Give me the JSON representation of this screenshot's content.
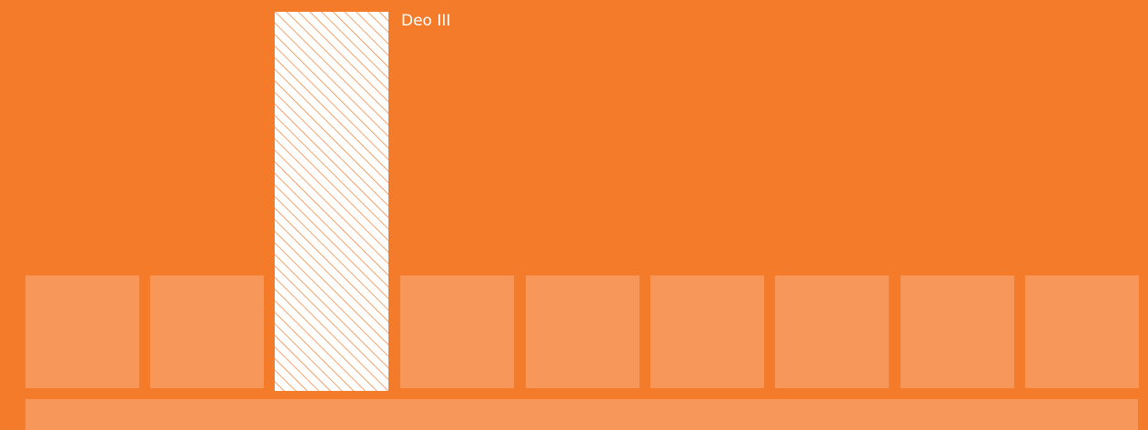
{
  "colors": {
    "background": "#f47b2a",
    "tile": "#f7985a",
    "hatch_fill": "#ffffff",
    "hatch_stroke": "#f47b2a",
    "label": "#ffffff"
  },
  "diagram": {
    "highlight_label": "Deo III",
    "tile_count": 9,
    "highlighted_index": 2
  }
}
